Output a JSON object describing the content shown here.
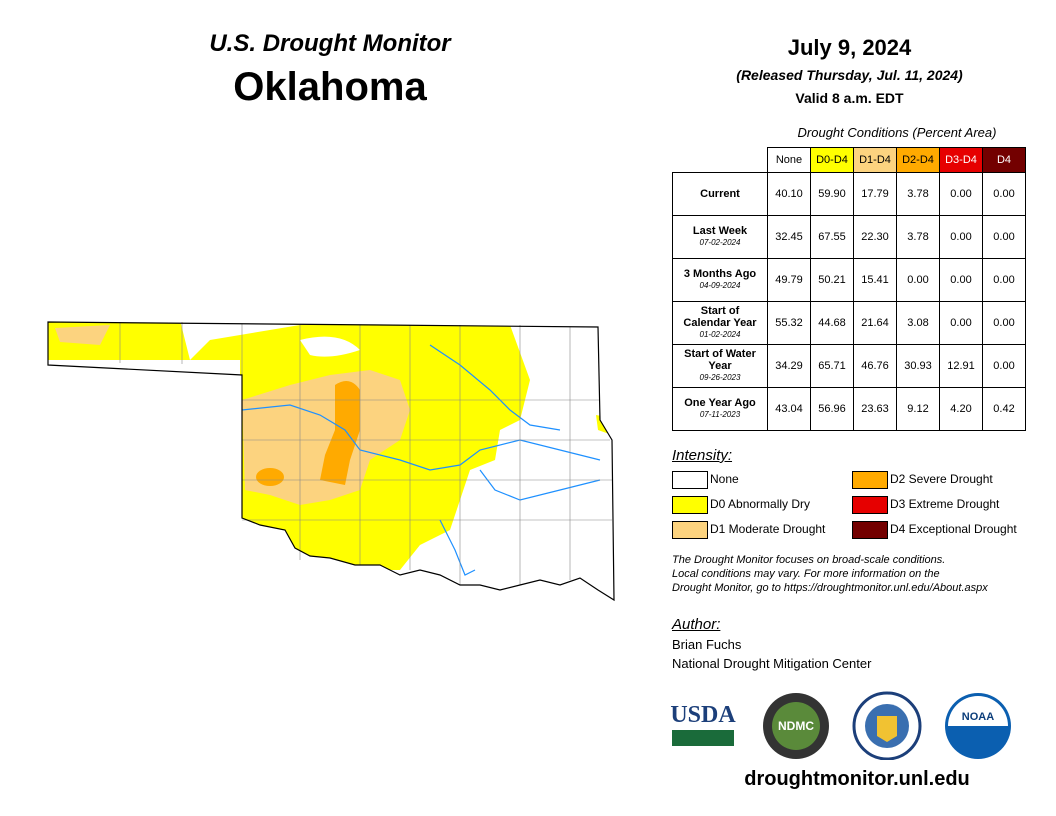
{
  "header": {
    "title": "U.S. Drought Monitor",
    "state": "Oklahoma",
    "date": "July 9, 2024",
    "released": "(Released Thursday, Jul. 11, 2024)",
    "valid": "Valid 8 a.m. EDT"
  },
  "table": {
    "caption": "Drought Conditions (Percent Area)",
    "columns": [
      {
        "label": "None",
        "color": "#ffffff",
        "text_color": "#000000"
      },
      {
        "label": "D0-D4",
        "color": "#ffff00",
        "text_color": "#000000"
      },
      {
        "label": "D1-D4",
        "color": "#fcd37f",
        "text_color": "#000000"
      },
      {
        "label": "D2-D4",
        "color": "#ffaa00",
        "text_color": "#000000"
      },
      {
        "label": "D3-D4",
        "color": "#e60000",
        "text_color": "#ffffff"
      },
      {
        "label": "D4",
        "color": "#730000",
        "text_color": "#ffffff"
      }
    ],
    "rows": [
      {
        "label": "Current",
        "values": [
          "40.10",
          "59.90",
          "17.79",
          "3.78",
          "0.00",
          "0.00"
        ]
      },
      {
        "label": "Last Week",
        "date": "07-02-2024",
        "values": [
          "32.45",
          "67.55",
          "22.30",
          "3.78",
          "0.00",
          "0.00"
        ]
      },
      {
        "label": "3 Months Ago",
        "date": "04-09-2024",
        "values": [
          "49.79",
          "50.21",
          "15.41",
          "0.00",
          "0.00",
          "0.00"
        ]
      },
      {
        "label": "Start of Calendar Year",
        "date": "01-02-2024",
        "values": [
          "55.32",
          "44.68",
          "21.64",
          "3.08",
          "0.00",
          "0.00"
        ]
      },
      {
        "label": "Start of Water Year",
        "date": "09-26-2023",
        "values": [
          "34.29",
          "65.71",
          "46.76",
          "30.93",
          "12.91",
          "0.00"
        ]
      },
      {
        "label": "One Year Ago",
        "date": "07-11-2023",
        "values": [
          "43.04",
          "56.96",
          "23.63",
          "9.12",
          "4.20",
          "0.42"
        ]
      }
    ]
  },
  "legend": {
    "title": "Intensity:",
    "items": [
      {
        "label": "None",
        "color": "#ffffff"
      },
      {
        "label": "D0 Abnormally Dry",
        "color": "#ffff00"
      },
      {
        "label": "D1 Moderate Drought",
        "color": "#fcd37f"
      },
      {
        "label": "D2 Severe Drought",
        "color": "#ffaa00"
      },
      {
        "label": "D3 Extreme Drought",
        "color": "#e60000"
      },
      {
        "label": "D4 Exceptional Drought",
        "color": "#730000"
      }
    ]
  },
  "note": [
    "The Drought Monitor focuses on broad-scale conditions.",
    "Local conditions may vary. For more information on the",
    "Drought Monitor, go to https://droughtmonitor.unl.edu/About.aspx"
  ],
  "author": {
    "title": "Author:",
    "name": "Brian Fuchs",
    "organization": "National Drought Mitigation Center"
  },
  "logos": [
    "USDA",
    "NDMC",
    "NOAA"
  ],
  "footer": "droughtmonitor.unl.edu"
}
